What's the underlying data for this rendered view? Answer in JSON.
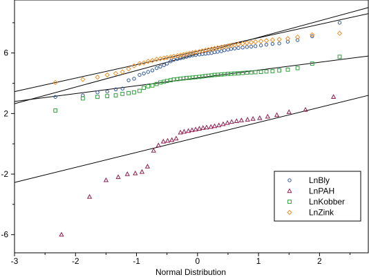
{
  "chart_data": {
    "type": "scatter",
    "title": "",
    "xlabel": "Normal Distribution",
    "ylabel": "",
    "xlim": [
      -3,
      2.8
    ],
    "ylim": [
      -7.2,
      9.5
    ],
    "x_ticks": [
      -3,
      -2,
      -1,
      0,
      1,
      2
    ],
    "x_tick_labels": [
      "-3",
      "-2",
      "-1",
      "0",
      "1",
      "2"
    ],
    "y_ticks": [
      -6,
      -2,
      2,
      6
    ],
    "y_tick_labels": [
      "-6",
      "-2",
      "2",
      "6"
    ],
    "grid": false,
    "legend_position": "lower-right",
    "series": [
      {
        "name": "LnBly",
        "marker": "circle",
        "color": "#2e5597",
        "points": [
          [
            -2.33,
            3.1
          ],
          [
            -1.88,
            3.2
          ],
          [
            -1.64,
            3.4
          ],
          [
            -1.48,
            3.45
          ],
          [
            -1.34,
            3.6
          ],
          [
            -1.23,
            3.65
          ],
          [
            -1.13,
            4.2
          ],
          [
            -1.04,
            4.3
          ],
          [
            -0.95,
            4.55
          ],
          [
            -0.88,
            4.65
          ],
          [
            -0.81,
            4.75
          ],
          [
            -0.74,
            4.85
          ],
          [
            -0.67,
            5.0
          ],
          [
            -0.61,
            5.1
          ],
          [
            -0.55,
            5.2
          ],
          [
            -0.5,
            5.3
          ],
          [
            -0.44,
            5.45
          ],
          [
            -0.39,
            5.55
          ],
          [
            -0.33,
            5.6
          ],
          [
            -0.28,
            5.65
          ],
          [
            -0.23,
            5.7
          ],
          [
            -0.18,
            5.75
          ],
          [
            -0.13,
            5.8
          ],
          [
            -0.08,
            5.85
          ],
          [
            -0.03,
            5.87
          ],
          [
            0.03,
            5.9
          ],
          [
            0.08,
            5.93
          ],
          [
            0.13,
            5.95
          ],
          [
            0.18,
            5.98
          ],
          [
            0.23,
            6.0
          ],
          [
            0.28,
            6.05
          ],
          [
            0.33,
            6.08
          ],
          [
            0.39,
            6.12
          ],
          [
            0.44,
            6.18
          ],
          [
            0.5,
            6.22
          ],
          [
            0.55,
            6.27
          ],
          [
            0.61,
            6.3
          ],
          [
            0.67,
            6.33
          ],
          [
            0.74,
            6.36
          ],
          [
            0.81,
            6.4
          ],
          [
            0.88,
            6.42
          ],
          [
            0.95,
            6.45
          ],
          [
            1.04,
            6.5
          ],
          [
            1.13,
            6.55
          ],
          [
            1.23,
            6.6
          ],
          [
            1.34,
            6.63
          ],
          [
            1.48,
            6.75
          ],
          [
            1.64,
            6.85
          ],
          [
            1.88,
            7.1
          ],
          [
            2.33,
            8.0
          ]
        ]
      },
      {
        "name": "LnPAH",
        "marker": "triangle",
        "color": "#8e1a4e",
        "points": [
          [
            -2.23,
            -6.0
          ],
          [
            -1.77,
            -3.5
          ],
          [
            -1.5,
            -2.4
          ],
          [
            -1.3,
            -2.2
          ],
          [
            -1.15,
            -2.0
          ],
          [
            -1.02,
            -1.95
          ],
          [
            -0.91,
            -1.85
          ],
          [
            -0.82,
            -1.5
          ],
          [
            -0.72,
            -0.45
          ],
          [
            -0.64,
            -0.1
          ],
          [
            -0.56,
            0.15
          ],
          [
            -0.49,
            0.2
          ],
          [
            -0.42,
            0.25
          ],
          [
            -0.35,
            0.35
          ],
          [
            -0.28,
            0.75
          ],
          [
            -0.22,
            0.8
          ],
          [
            -0.15,
            0.85
          ],
          [
            -0.09,
            0.9
          ],
          [
            -0.03,
            0.95
          ],
          [
            0.03,
            1.0
          ],
          [
            0.09,
            1.05
          ],
          [
            0.15,
            1.08
          ],
          [
            0.22,
            1.12
          ],
          [
            0.28,
            1.17
          ],
          [
            0.35,
            1.22
          ],
          [
            0.42,
            1.3
          ],
          [
            0.49,
            1.38
          ],
          [
            0.56,
            1.45
          ],
          [
            0.64,
            1.5
          ],
          [
            0.72,
            1.55
          ],
          [
            0.82,
            1.6
          ],
          [
            0.91,
            1.65
          ],
          [
            1.02,
            1.7
          ],
          [
            1.15,
            1.8
          ],
          [
            1.3,
            1.9
          ],
          [
            1.5,
            2.1
          ],
          [
            1.77,
            2.25
          ],
          [
            2.23,
            3.1
          ]
        ]
      },
      {
        "name": "LnKobber",
        "marker": "square",
        "color": "#2e9e3a",
        "points": [
          [
            -2.33,
            2.2
          ],
          [
            -1.88,
            3.0
          ],
          [
            -1.64,
            3.1
          ],
          [
            -1.48,
            3.15
          ],
          [
            -1.34,
            3.2
          ],
          [
            -1.23,
            3.3
          ],
          [
            -1.13,
            3.35
          ],
          [
            -1.04,
            3.4
          ],
          [
            -0.95,
            3.5
          ],
          [
            -0.88,
            3.7
          ],
          [
            -0.81,
            3.8
          ],
          [
            -0.74,
            3.85
          ],
          [
            -0.67,
            3.95
          ],
          [
            -0.61,
            4.05
          ],
          [
            -0.55,
            4.1
          ],
          [
            -0.5,
            4.15
          ],
          [
            -0.44,
            4.2
          ],
          [
            -0.39,
            4.25
          ],
          [
            -0.33,
            4.27
          ],
          [
            -0.28,
            4.3
          ],
          [
            -0.23,
            4.32
          ],
          [
            -0.18,
            4.35
          ],
          [
            -0.13,
            4.36
          ],
          [
            -0.08,
            4.38
          ],
          [
            -0.03,
            4.4
          ],
          [
            0.03,
            4.42
          ],
          [
            0.08,
            4.45
          ],
          [
            0.13,
            4.48
          ],
          [
            0.18,
            4.5
          ],
          [
            0.23,
            4.52
          ],
          [
            0.28,
            4.55
          ],
          [
            0.33,
            4.56
          ],
          [
            0.39,
            4.58
          ],
          [
            0.44,
            4.6
          ],
          [
            0.5,
            4.62
          ],
          [
            0.55,
            4.63
          ],
          [
            0.61,
            4.65
          ],
          [
            0.67,
            4.66
          ],
          [
            0.74,
            4.68
          ],
          [
            0.81,
            4.7
          ],
          [
            0.88,
            4.72
          ],
          [
            0.95,
            4.73
          ],
          [
            1.04,
            4.75
          ],
          [
            1.13,
            4.78
          ],
          [
            1.23,
            4.8
          ],
          [
            1.34,
            4.85
          ],
          [
            1.48,
            4.9
          ],
          [
            1.64,
            5.0
          ],
          [
            1.88,
            5.3
          ],
          [
            2.33,
            5.75
          ]
        ]
      },
      {
        "name": "LnZink",
        "marker": "diamond",
        "color": "#f0902a",
        "points": [
          [
            -2.33,
            4.05
          ],
          [
            -1.88,
            4.25
          ],
          [
            -1.64,
            4.4
          ],
          [
            -1.48,
            4.55
          ],
          [
            -1.34,
            4.65
          ],
          [
            -1.23,
            4.75
          ],
          [
            -1.13,
            4.95
          ],
          [
            -1.04,
            5.15
          ],
          [
            -0.95,
            5.3
          ],
          [
            -0.88,
            5.35
          ],
          [
            -0.81,
            5.45
          ],
          [
            -0.74,
            5.5
          ],
          [
            -0.67,
            5.58
          ],
          [
            -0.61,
            5.62
          ],
          [
            -0.55,
            5.66
          ],
          [
            -0.5,
            5.7
          ],
          [
            -0.44,
            5.74
          ],
          [
            -0.39,
            5.78
          ],
          [
            -0.33,
            5.82
          ],
          [
            -0.28,
            5.86
          ],
          [
            -0.23,
            5.9
          ],
          [
            -0.18,
            5.94
          ],
          [
            -0.13,
            5.98
          ],
          [
            -0.08,
            6.02
          ],
          [
            -0.03,
            6.06
          ],
          [
            0.03,
            6.1
          ],
          [
            0.08,
            6.14
          ],
          [
            0.13,
            6.18
          ],
          [
            0.18,
            6.22
          ],
          [
            0.23,
            6.26
          ],
          [
            0.28,
            6.3
          ],
          [
            0.33,
            6.34
          ],
          [
            0.39,
            6.38
          ],
          [
            0.44,
            6.42
          ],
          [
            0.5,
            6.46
          ],
          [
            0.55,
            6.5
          ],
          [
            0.61,
            6.54
          ],
          [
            0.67,
            6.58
          ],
          [
            0.74,
            6.62
          ],
          [
            0.81,
            6.66
          ],
          [
            0.88,
            6.7
          ],
          [
            0.95,
            6.74
          ],
          [
            1.04,
            6.78
          ],
          [
            1.13,
            6.82
          ],
          [
            1.23,
            6.86
          ],
          [
            1.34,
            6.9
          ],
          [
            1.48,
            6.95
          ],
          [
            1.64,
            7.05
          ],
          [
            1.88,
            7.2
          ],
          [
            2.33,
            7.3
          ]
        ]
      }
    ],
    "fit_lines": [
      {
        "series": "LnBly",
        "x": [
          -3,
          2.8
        ],
        "y": [
          2.65,
          9.0
        ]
      },
      {
        "series": "LnPAH",
        "x": [
          -3,
          2.8
        ],
        "y": [
          -2.55,
          3.2
        ]
      },
      {
        "series": "LnKobber",
        "x": [
          -3,
          2.8
        ],
        "y": [
          2.8,
          5.8
        ]
      },
      {
        "series": "LnZink",
        "x": [
          -3,
          2.8
        ],
        "y": [
          3.45,
          8.6
        ]
      }
    ]
  }
}
